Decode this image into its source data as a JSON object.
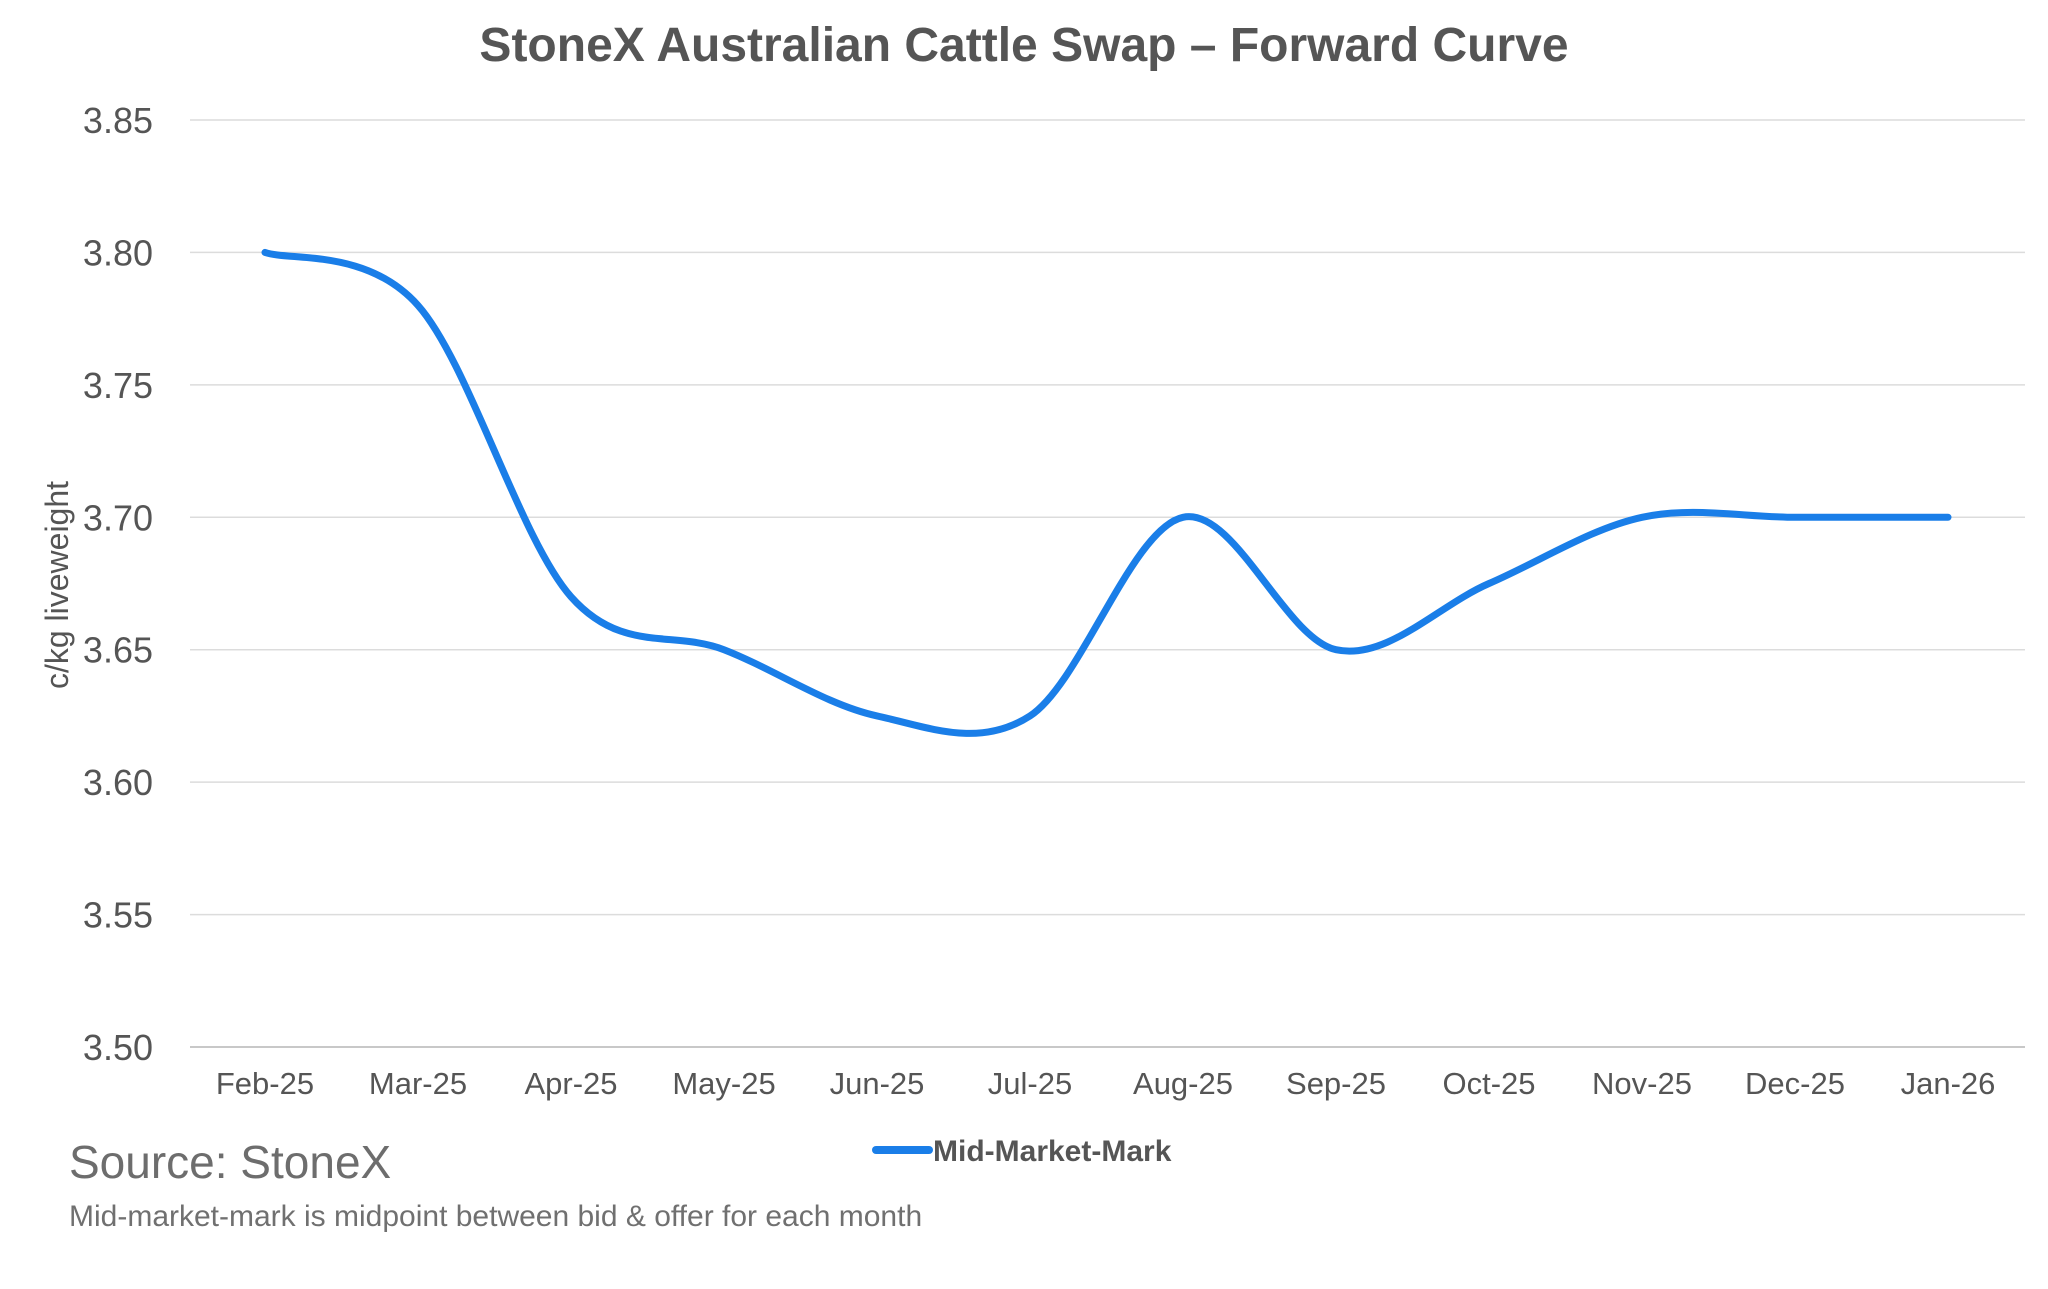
{
  "chart_data": {
    "type": "line",
    "title": "StoneX Australian Cattle Swap – Forward Curve",
    "xlabel": "",
    "ylabel": "c/kg liveweight",
    "categories": [
      "Feb-25",
      "Mar-25",
      "Apr-25",
      "May-25",
      "Jun-25",
      "Jul-25",
      "Aug-25",
      "Sep-25",
      "Oct-25",
      "Nov-25",
      "Dec-25",
      "Jan-26"
    ],
    "series": [
      {
        "name": "Mid-Market-Mark",
        "values": [
          3.8,
          3.78,
          3.67,
          3.65,
          3.625,
          3.625,
          3.7,
          3.65,
          3.675,
          3.7,
          3.7,
          3.7
        ],
        "color": "#1a7ee8"
      }
    ],
    "ylim": [
      3.5,
      3.85
    ],
    "yticks": [
      "3.50",
      "3.55",
      "3.60",
      "3.65",
      "3.70",
      "3.75",
      "3.80",
      "3.85"
    ],
    "grid": true,
    "legend_position": "bottom",
    "source": "Source: StoneX",
    "note": "Mid-market-mark is midpoint between bid & offer for each month"
  }
}
